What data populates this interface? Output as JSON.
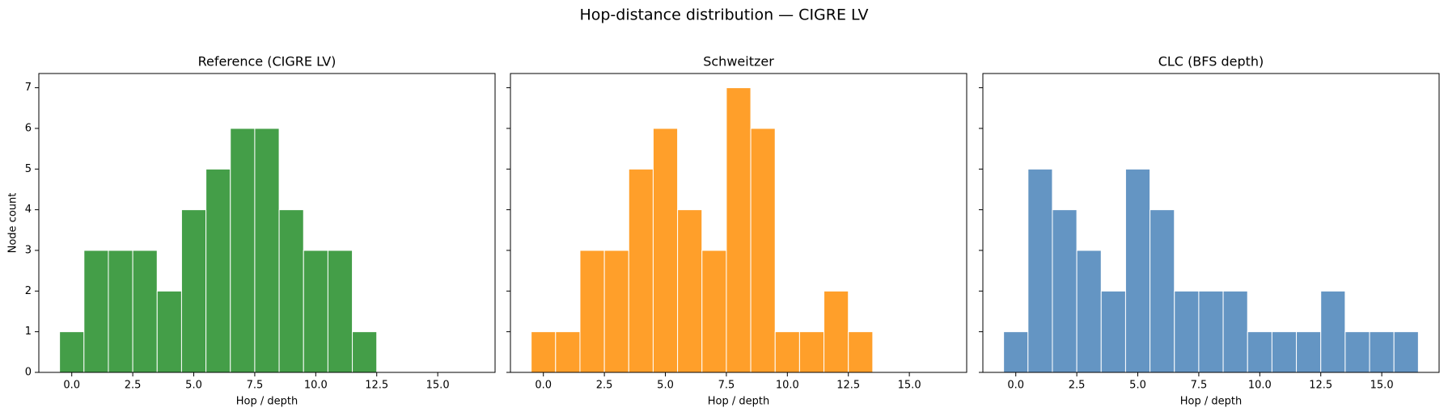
{
  "title": "Hop-distance distribution — CIGRE LV",
  "chart_data": [
    {
      "type": "histogram",
      "title": "Reference (CIGRE LV)",
      "xlabel": "Hop / depth",
      "ylabel": "Node count",
      "color": "#449e48",
      "bins": [
        -0.5,
        0.5,
        1.5,
        2.5,
        3.5,
        4.5,
        5.5,
        6.5,
        7.5,
        8.5,
        9.5,
        10.5,
        11.5,
        12.5
      ],
      "values": [
        1,
        3,
        3,
        3,
        2,
        4,
        5,
        6,
        6,
        4,
        3,
        3,
        1
      ],
      "xlim": [
        -1.35,
        17.35
      ],
      "ylim": [
        0,
        7.35
      ],
      "xticks": [
        {
          "value": 0,
          "label": "0.0"
        },
        {
          "value": 2.5,
          "label": "2.5"
        },
        {
          "value": 5,
          "label": "5.0"
        },
        {
          "value": 7.5,
          "label": "7.5"
        },
        {
          "value": 10,
          "label": "10.0"
        },
        {
          "value": 12.5,
          "label": "12.5"
        },
        {
          "value": 15,
          "label": "15.0"
        }
      ],
      "yticks": [
        0,
        1,
        2,
        3,
        4,
        5,
        6,
        7
      ]
    },
    {
      "type": "histogram",
      "title": "Schweitzer",
      "xlabel": "Hop / depth",
      "color": "#ff9f2a",
      "sharey": true,
      "bins": [
        -0.5,
        0.5,
        1.5,
        2.5,
        3.5,
        4.5,
        5.5,
        6.5,
        7.5,
        8.5,
        9.5,
        10.5,
        11.5,
        12.5,
        13.5
      ],
      "values": [
        1,
        1,
        3,
        3,
        5,
        6,
        4,
        3,
        7,
        6,
        1,
        1,
        2,
        1
      ],
      "xlim": [
        -1.35,
        17.35
      ],
      "ylim": [
        0,
        7.35
      ],
      "xticks": [
        {
          "value": 0,
          "label": "0.0"
        },
        {
          "value": 2.5,
          "label": "2.5"
        },
        {
          "value": 5,
          "label": "5.0"
        },
        {
          "value": 7.5,
          "label": "7.5"
        },
        {
          "value": 10,
          "label": "10.0"
        },
        {
          "value": 12.5,
          "label": "12.5"
        },
        {
          "value": 15,
          "label": "15.0"
        }
      ],
      "yticks": [
        0,
        1,
        2,
        3,
        4,
        5,
        6,
        7
      ]
    },
    {
      "type": "histogram",
      "title": "CLC (BFS depth)",
      "xlabel": "Hop / depth",
      "color": "#6495c3",
      "sharey": true,
      "bins": [
        -0.5,
        0.5,
        1.5,
        2.5,
        3.5,
        4.5,
        5.5,
        6.5,
        7.5,
        8.5,
        9.5,
        10.5,
        11.5,
        12.5,
        13.5,
        14.5,
        15.5,
        16.5
      ],
      "values": [
        1,
        5,
        4,
        3,
        2,
        5,
        4,
        2,
        2,
        2,
        1,
        1,
        1,
        2,
        1,
        1,
        1
      ],
      "xlim": [
        -1.35,
        17.35
      ],
      "ylim": [
        0,
        7.35
      ],
      "xticks": [
        {
          "value": 0,
          "label": "0.0"
        },
        {
          "value": 2.5,
          "label": "2.5"
        },
        {
          "value": 5,
          "label": "5.0"
        },
        {
          "value": 7.5,
          "label": "7.5"
        },
        {
          "value": 10,
          "label": "10.0"
        },
        {
          "value": 12.5,
          "label": "12.5"
        },
        {
          "value": 15,
          "label": "15.0"
        }
      ],
      "yticks": [
        0,
        1,
        2,
        3,
        4,
        5,
        6,
        7
      ]
    }
  ]
}
